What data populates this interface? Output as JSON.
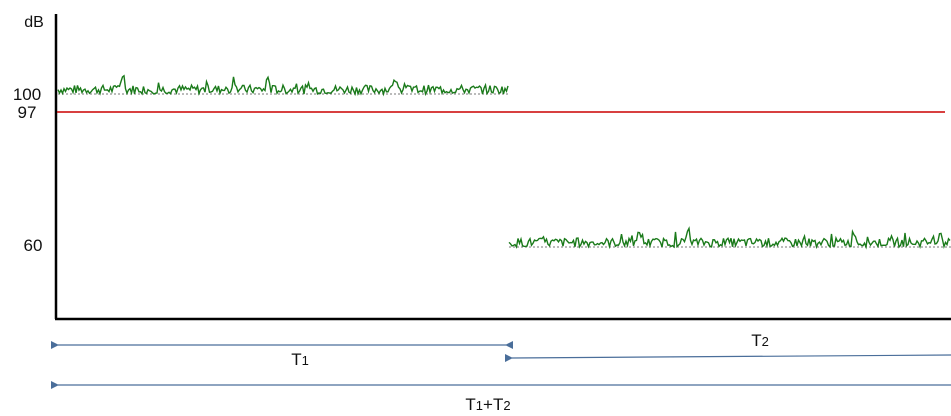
{
  "axis": {
    "y_unit": "dB",
    "tick_labels": [
      "100",
      "97",
      "60"
    ]
  },
  "chart_data": {
    "type": "line",
    "y_ticks": [
      100,
      97,
      60
    ],
    "threshold": {
      "value": 97,
      "color": "#cc0000"
    },
    "series": [
      {
        "segment": "T1",
        "level": 100,
        "x_range": [
          0,
          0.5
        ],
        "color": "#1a7a1a"
      },
      {
        "segment": "T2",
        "level": 60,
        "x_range": [
          0.5,
          1.0
        ],
        "color": "#1a7a1a"
      }
    ],
    "intervals": [
      {
        "label_base": "T",
        "label_sub": "1",
        "span": [
          0,
          0.5
        ]
      },
      {
        "label_base": "T",
        "label_sub": "2",
        "span": [
          0.5,
          1.0
        ]
      },
      {
        "label_base": "T",
        "label_sub": "1",
        "label_mid": "+T",
        "label_sub2": "2",
        "span": [
          0,
          1.0
        ]
      }
    ],
    "arrow_color": "#4a6e9a"
  }
}
